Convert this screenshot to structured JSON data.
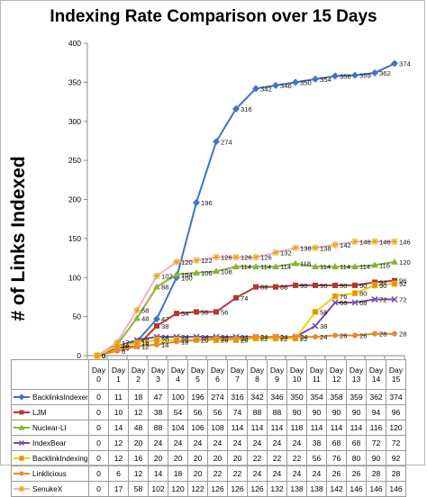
{
  "chart_data": {
    "type": "line",
    "title": "Indexing Rate Comparison over 15 Days",
    "xlabel": "",
    "ylabel": "# of Links Indexed",
    "ylim": [
      0,
      400
    ],
    "yticks": [
      0,
      50,
      100,
      150,
      200,
      250,
      300,
      350,
      400
    ],
    "grid": false,
    "legend": "data table below plot",
    "categories": [
      "Day 0",
      "Day 1",
      "Day 2",
      "Day 3",
      "Day 4",
      "Day 5",
      "Day 6",
      "Day 7",
      "Day 8",
      "Day 9",
      "Day 10",
      "Day 11",
      "Day 12",
      "Day 13",
      "Day 14",
      "Day 15"
    ],
    "series": [
      {
        "name": "BacklinksIndexer",
        "color": "#4472c4",
        "marker": "diamond",
        "values": [
          0,
          11,
          18,
          47,
          100,
          196,
          274,
          316,
          342,
          346,
          350,
          354,
          358,
          359,
          362,
          374
        ]
      },
      {
        "name": "LJM",
        "color": "#b03a2e",
        "marker": "square",
        "values": [
          0,
          10,
          12,
          38,
          54,
          56,
          56,
          74,
          88,
          88,
          90,
          90,
          90,
          90,
          94,
          96
        ]
      },
      {
        "name": "Nuclear-LI",
        "color": "#8db33d",
        "marker": "triangle",
        "values": [
          0,
          14,
          48,
          88,
          104,
          106,
          108,
          114,
          114,
          114,
          118,
          114,
          114,
          114,
          116,
          120
        ]
      },
      {
        "name": "IndexBear",
        "color": "#7a4ea3",
        "marker": "x",
        "values": [
          0,
          12,
          20,
          24,
          24,
          24,
          24,
          24,
          24,
          24,
          24,
          38,
          68,
          68,
          72,
          72
        ]
      },
      {
        "name": "BacklinkIndexing",
        "color": "#e8d400",
        "marker": "orange-square",
        "values": [
          0,
          12,
          16,
          20,
          20,
          20,
          20,
          20,
          22,
          22,
          22,
          56,
          76,
          80,
          90,
          92
        ]
      },
      {
        "name": "Linklicious",
        "color": "#e8892d",
        "marker": "circle",
        "values": [
          0,
          6,
          12,
          14,
          18,
          20,
          22,
          22,
          24,
          24,
          24,
          24,
          26,
          26,
          28,
          28
        ]
      },
      {
        "name": "SenukeX",
        "color": "#f5b0c8",
        "marker": "star",
        "values": [
          0,
          17,
          58,
          102,
          120,
          122,
          126,
          126,
          126,
          132,
          138,
          138,
          142,
          146,
          146,
          146
        ]
      }
    ]
  }
}
